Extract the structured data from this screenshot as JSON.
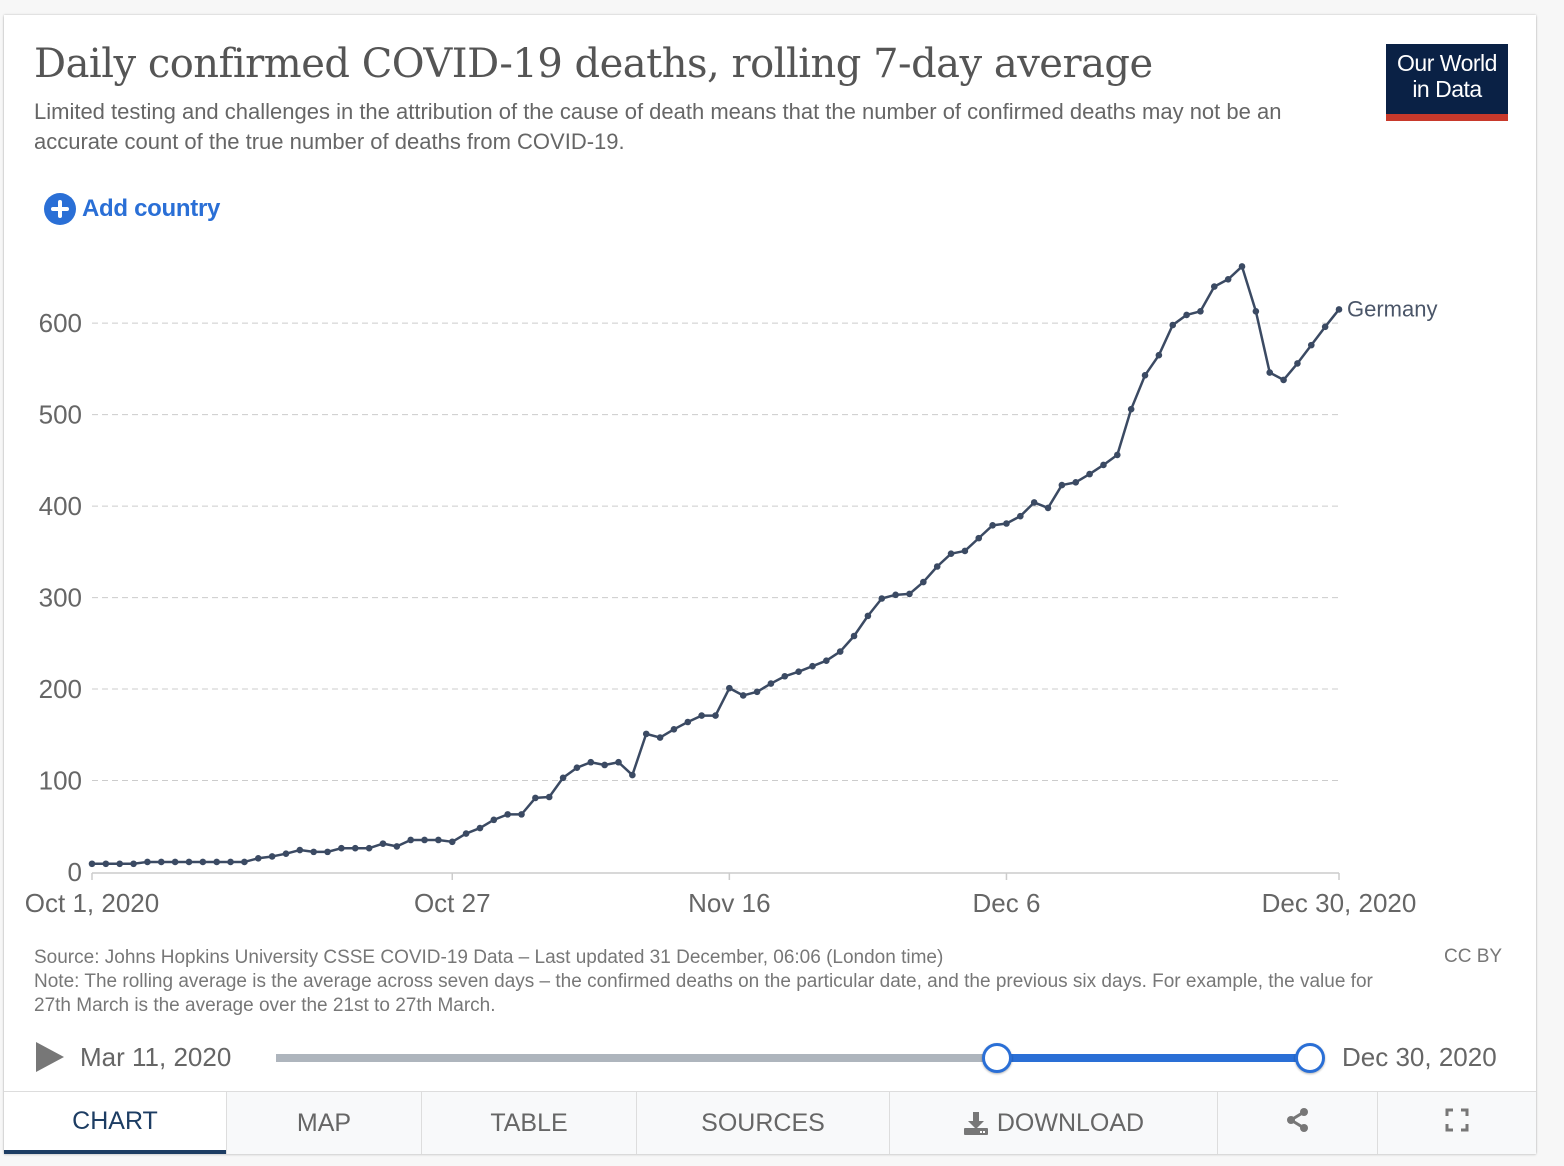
{
  "header": {
    "title": "Daily confirmed COVID-19 deaths, rolling 7-day average",
    "subtitle": "Limited testing and challenges in the attribution of the cause of death means that the number of confirmed deaths may not be an accurate count of the true number of deaths from COVID-19.",
    "logo_line1": "Our World",
    "logo_line2": "in Data",
    "colors": {
      "logo_bg": "#0a2145",
      "logo_bar": "#c8392b",
      "accent": "#2a6fd6",
      "series": "#3b4a63"
    }
  },
  "controls": {
    "add_country_label": "Add country",
    "add_icon": "plus-circle-icon"
  },
  "chart_data": {
    "type": "line",
    "title": "Daily confirmed COVID-19 deaths, rolling 7-day average",
    "xlabel": "",
    "ylabel": "",
    "x_start": "Oct 1, 2020",
    "x_end": "Dec 30, 2020",
    "x_unit": "days since Oct 1, 2020",
    "xlim": [
      0,
      89
    ],
    "ylim": [
      0,
      680
    ],
    "grid": true,
    "y_ticks": [
      0,
      100,
      200,
      300,
      400,
      500,
      600
    ],
    "y_tick_labels": [
      "0",
      "100",
      "200",
      "300",
      "400",
      "500",
      "600"
    ],
    "x_ticks": [
      0,
      26,
      46,
      66,
      90
    ],
    "x_tick_labels": [
      "Oct 1, 2020",
      "Oct 27",
      "Nov 16",
      "Dec 6",
      "Dec 30, 2020"
    ],
    "legend": "inline-end-label",
    "series": [
      {
        "name": "Germany",
        "color": "#3b4a63",
        "values": [
          9,
          9,
          9,
          9,
          11,
          11,
          11,
          11,
          11,
          11,
          11,
          11,
          15,
          17,
          20,
          24,
          22,
          22,
          26,
          26,
          26,
          31,
          28,
          35,
          35,
          35,
          33,
          42,
          48,
          57,
          63,
          63,
          81,
          82,
          103,
          114,
          120,
          117,
          120,
          106,
          151,
          147,
          156,
          164,
          171,
          171,
          201,
          193,
          197,
          206,
          214,
          219,
          225,
          231,
          241,
          258,
          280,
          299,
          303,
          304,
          317,
          334,
          348,
          351,
          365,
          379,
          381,
          389,
          404,
          398,
          423,
          426,
          435,
          445,
          456,
          506,
          543,
          565,
          598,
          609,
          613,
          640,
          648,
          662,
          613,
          546,
          538,
          556,
          576,
          596,
          615
        ]
      }
    ]
  },
  "footer": {
    "source": "Source: Johns Hopkins University CSSE COVID-19 Data – Last updated 31 December, 06:06 (London time)",
    "note": "Note: The rolling average is the average across seven days – the confirmed deaths on the particular date, and the previous six days. For example, the value for 27th March is the average over the 21st to 27th March.",
    "license": "CC BY"
  },
  "timeline": {
    "start_label": "Mar 11, 2020",
    "end_label": "Dec 30, 2020",
    "selection_start_fraction": 0.697,
    "selection_end_fraction": 1.0,
    "play_icon": "play-icon"
  },
  "tabs": [
    {
      "label": "CHART",
      "active": true
    },
    {
      "label": "MAP",
      "active": false
    },
    {
      "label": "TABLE",
      "active": false
    },
    {
      "label": "SOURCES",
      "active": false
    },
    {
      "label": "DOWNLOAD",
      "active": false,
      "icon": "download-icon"
    },
    {
      "label": "",
      "active": false,
      "icon": "share-icon"
    },
    {
      "label": "",
      "active": false,
      "icon": "fullscreen-icon"
    }
  ]
}
